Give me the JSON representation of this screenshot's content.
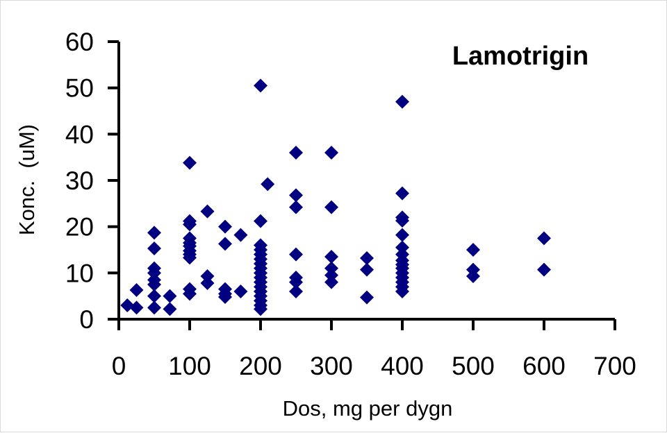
{
  "chart_data": {
    "type": "scatter",
    "title": "Lamotrigin",
    "xlabel": "Dos, mg per dygn",
    "ylabel": "Konc.  (uM)",
    "xlim": [
      0,
      700
    ],
    "ylim": [
      0,
      60
    ],
    "xticks": [
      0,
      100,
      200,
      300,
      400,
      500,
      600,
      700
    ],
    "yticks": [
      0,
      10,
      20,
      30,
      40,
      50,
      60
    ],
    "grid": false,
    "legend": "none",
    "marker": "diamond",
    "marker_color": "#000080",
    "points": [
      [
        12,
        3.0
      ],
      [
        25,
        6.3
      ],
      [
        25,
        2.5
      ],
      [
        50,
        18.7
      ],
      [
        50,
        15.3
      ],
      [
        50,
        11.0
      ],
      [
        50,
        10.0
      ],
      [
        50,
        8.5
      ],
      [
        50,
        7.5
      ],
      [
        50,
        5.0
      ],
      [
        50,
        2.5
      ],
      [
        72,
        5.0
      ],
      [
        72,
        2.2
      ],
      [
        100,
        33.8
      ],
      [
        100,
        21.2
      ],
      [
        100,
        20.5
      ],
      [
        100,
        17.5
      ],
      [
        100,
        16.5
      ],
      [
        100,
        15.8
      ],
      [
        100,
        14.8
      ],
      [
        100,
        14.0
      ],
      [
        100,
        13.3
      ],
      [
        100,
        6.5
      ],
      [
        100,
        5.5
      ],
      [
        125,
        23.3
      ],
      [
        125,
        9.3
      ],
      [
        125,
        7.8
      ],
      [
        150,
        20.0
      ],
      [
        150,
        16.3
      ],
      [
        150,
        6.5
      ],
      [
        150,
        5.5
      ],
      [
        150,
        4.8
      ],
      [
        172,
        18.2
      ],
      [
        172,
        6.0
      ],
      [
        200,
        50.5
      ],
      [
        200,
        21.2
      ],
      [
        200,
        16.0
      ],
      [
        200,
        15.0
      ],
      [
        200,
        14.0
      ],
      [
        200,
        13.0
      ],
      [
        200,
        12.0
      ],
      [
        200,
        11.0
      ],
      [
        200,
        10.0
      ],
      [
        200,
        9.0
      ],
      [
        200,
        8.0
      ],
      [
        200,
        7.0
      ],
      [
        200,
        6.0
      ],
      [
        200,
        5.0
      ],
      [
        200,
        4.0
      ],
      [
        200,
        3.0
      ],
      [
        200,
        2.2
      ],
      [
        210,
        29.2
      ],
      [
        250,
        36.0
      ],
      [
        250,
        26.8
      ],
      [
        250,
        24.2
      ],
      [
        250,
        14.0
      ],
      [
        250,
        9.0
      ],
      [
        250,
        8.0
      ],
      [
        250,
        6.0
      ],
      [
        300,
        36.0
      ],
      [
        300,
        24.2
      ],
      [
        300,
        13.5
      ],
      [
        300,
        11.0
      ],
      [
        300,
        9.5
      ],
      [
        300,
        8.0
      ],
      [
        350,
        13.2
      ],
      [
        350,
        10.7
      ],
      [
        350,
        4.7
      ],
      [
        400,
        47.0
      ],
      [
        400,
        27.2
      ],
      [
        400,
        22.0
      ],
      [
        400,
        21.3
      ],
      [
        400,
        18.2
      ],
      [
        400,
        15.5
      ],
      [
        400,
        14.0
      ],
      [
        400,
        12.7
      ],
      [
        400,
        11.8
      ],
      [
        400,
        11.0
      ],
      [
        400,
        10.0
      ],
      [
        400,
        9.0
      ],
      [
        400,
        8.0
      ],
      [
        400,
        7.0
      ],
      [
        400,
        6.0
      ],
      [
        500,
        15.0
      ],
      [
        500,
        10.7
      ],
      [
        500,
        9.3
      ],
      [
        600,
        17.5
      ],
      [
        600,
        10.7
      ]
    ]
  }
}
